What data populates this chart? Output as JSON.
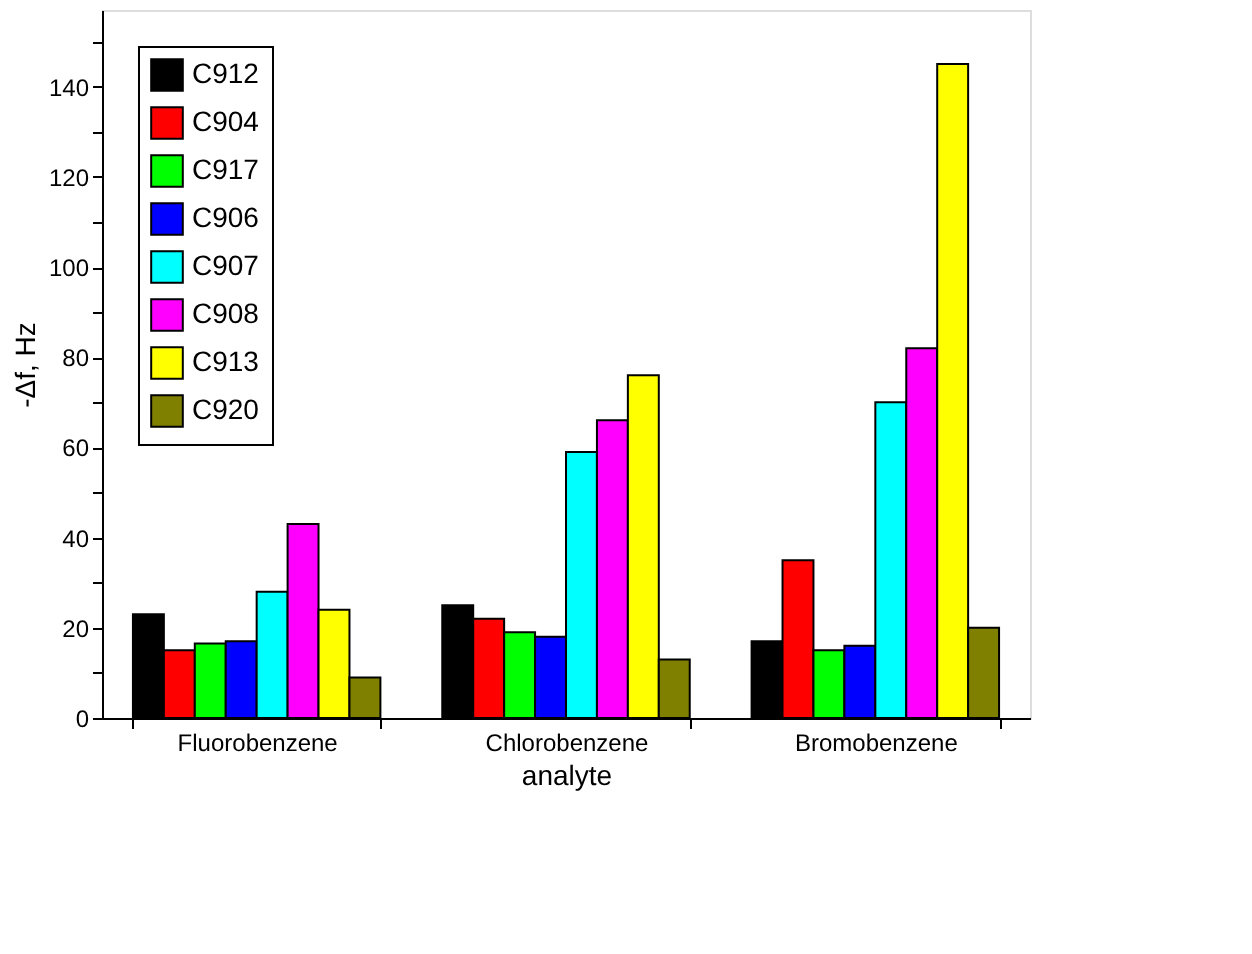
{
  "chart_data": {
    "type": "bar",
    "xlabel": "analyte",
    "ylabel": "-Δf, Hz",
    "categories": [
      "Fluorobenzene",
      "Chlorobenzene",
      "Bromobenzene"
    ],
    "series": [
      {
        "name": "C912",
        "color": "#000000",
        "values": [
          23,
          25,
          17
        ]
      },
      {
        "name": "C904",
        "color": "#ff0000",
        "values": [
          15,
          22,
          35
        ]
      },
      {
        "name": "C917",
        "color": "#00ff00",
        "values": [
          16.5,
          19,
          15
        ]
      },
      {
        "name": "C906",
        "color": "#0000ff",
        "values": [
          17,
          18,
          16
        ]
      },
      {
        "name": "C907",
        "color": "#00ffff",
        "values": [
          28,
          59,
          70
        ]
      },
      {
        "name": "C908",
        "color": "#ff00ff",
        "values": [
          43,
          66,
          82
        ]
      },
      {
        "name": "C913",
        "color": "#ffff00",
        "values": [
          24,
          76,
          145
        ]
      },
      {
        "name": "C920",
        "color": "#808000",
        "values": [
          9,
          13,
          20
        ]
      }
    ],
    "ylim": [
      0,
      157
    ],
    "yticks": [
      0,
      {
        "value": 10,
        "label": null
      },
      20,
      {
        "value": 30,
        "label": null
      },
      40,
      {
        "value": 50,
        "label": null
      },
      60,
      {
        "value": 70,
        "label": null
      },
      80,
      {
        "value": 90,
        "label": null
      },
      100,
      {
        "value": 110,
        "label": null
      },
      120,
      {
        "value": 130,
        "label": null
      },
      140,
      {
        "value": 150,
        "label": null
      }
    ],
    "grid": false,
    "legend": "top left"
  }
}
